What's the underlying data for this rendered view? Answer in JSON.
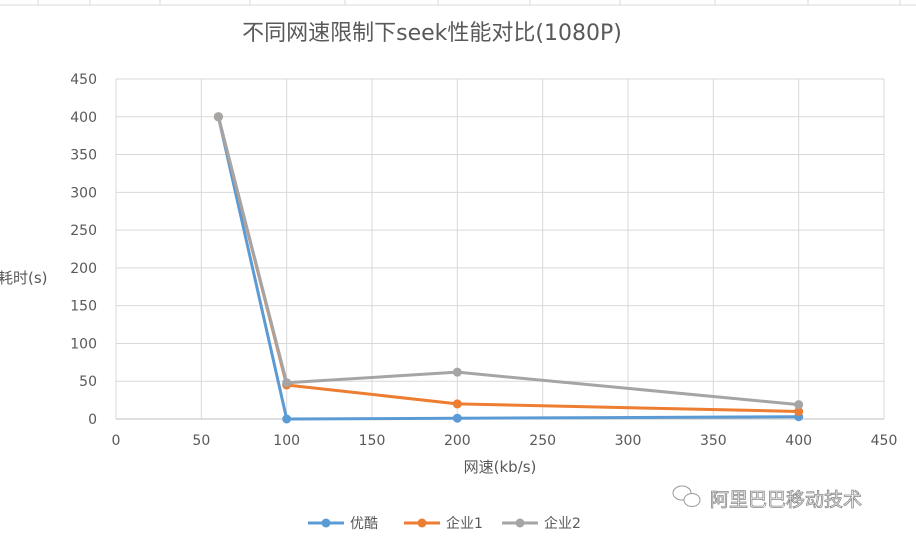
{
  "chart_data": {
    "type": "line",
    "title": "不同网速限制下seek性能对比(1080P)",
    "xlabel": "网速(kb/s)",
    "ylabel": "耗时(s)",
    "xlim": [
      0,
      450
    ],
    "ylim": [
      0,
      450
    ],
    "xticks": [
      0,
      50,
      100,
      150,
      200,
      250,
      300,
      350,
      400,
      450
    ],
    "yticks": [
      0,
      50,
      100,
      150,
      200,
      250,
      300,
      350,
      400,
      450
    ],
    "grid": true,
    "legend": "bottom",
    "x": [
      60,
      100,
      200,
      400
    ],
    "series": [
      {
        "name": "优酷",
        "color": "#5B9BD5",
        "values": [
          400,
          0,
          1,
          3
        ]
      },
      {
        "name": "企业1",
        "color": "#ED7D31",
        "values": [
          400,
          45,
          20,
          10
        ]
      },
      {
        "name": "企业2",
        "color": "#A5A5A5",
        "values": [
          400,
          48,
          62,
          19
        ]
      }
    ]
  },
  "watermark": {
    "text": "阿里巴巴移动技术",
    "icon": "wechat-icon"
  }
}
